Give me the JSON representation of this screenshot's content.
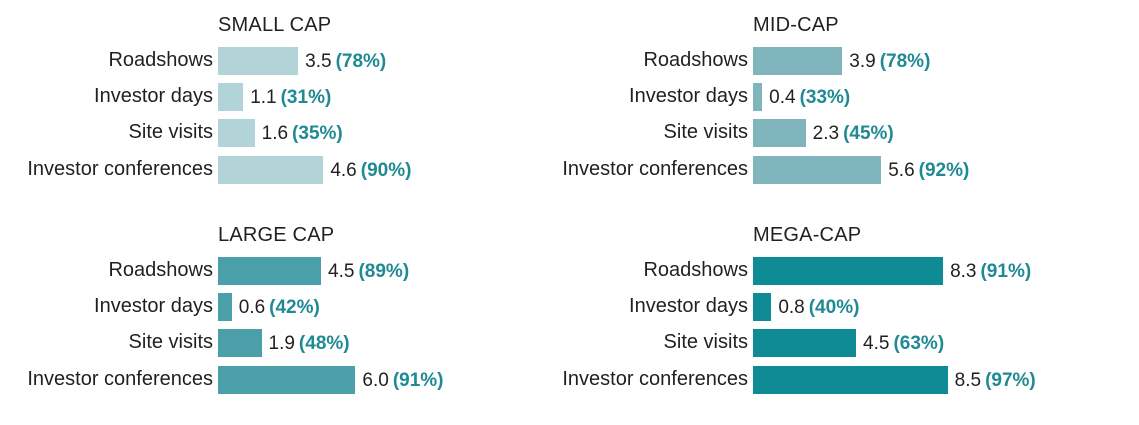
{
  "chart_data": [
    {
      "type": "bar",
      "title": "SMALL CAP",
      "categories": [
        "Roadshows",
        "Investor days",
        "Site visits",
        "Investor conferences"
      ],
      "values": [
        3.5,
        1.1,
        1.6,
        4.6
      ],
      "value_labels": [
        "3.5",
        "1.1",
        "1.6",
        "4.6"
      ],
      "percent_labels": [
        "(78%)",
        "(31%)",
        "(35%)",
        "(90%)"
      ],
      "color": "#b2d3d8"
    },
    {
      "type": "bar",
      "title": "MID-CAP",
      "categories": [
        "Roadshows",
        "Investor days",
        "Site visits",
        "Investor conferences"
      ],
      "values": [
        3.9,
        0.4,
        2.3,
        5.6
      ],
      "value_labels": [
        "3.9",
        "0.4",
        "2.3",
        "5.6"
      ],
      "percent_labels": [
        "(78%)",
        "(33%)",
        "(45%)",
        "(92%)"
      ],
      "color": "#80b5bd"
    },
    {
      "type": "bar",
      "title": "LARGE CAP",
      "categories": [
        "Roadshows",
        "Investor days",
        "Site visits",
        "Investor conferences"
      ],
      "values": [
        4.5,
        0.6,
        1.9,
        6.0
      ],
      "value_labels": [
        "4.5",
        "0.6",
        "1.9",
        "6.0"
      ],
      "percent_labels": [
        "(89%)",
        "(42%)",
        "(48%)",
        "(91%)"
      ],
      "color": "#4a9fa8"
    },
    {
      "type": "bar",
      "title": "MEGA-CAP",
      "categories": [
        "Roadshows",
        "Investor days",
        "Site visits",
        "Investor conferences"
      ],
      "values": [
        8.3,
        0.8,
        4.5,
        8.5
      ],
      "value_labels": [
        "8.3",
        "0.8",
        "4.5",
        "8.5"
      ],
      "percent_labels": [
        "(91%)",
        "(40%)",
        "(63%)",
        "(97%)"
      ],
      "color": "#0e8b95"
    }
  ],
  "colors": {
    "percent_text": "#1f8a94",
    "value_text": "#231f20"
  }
}
